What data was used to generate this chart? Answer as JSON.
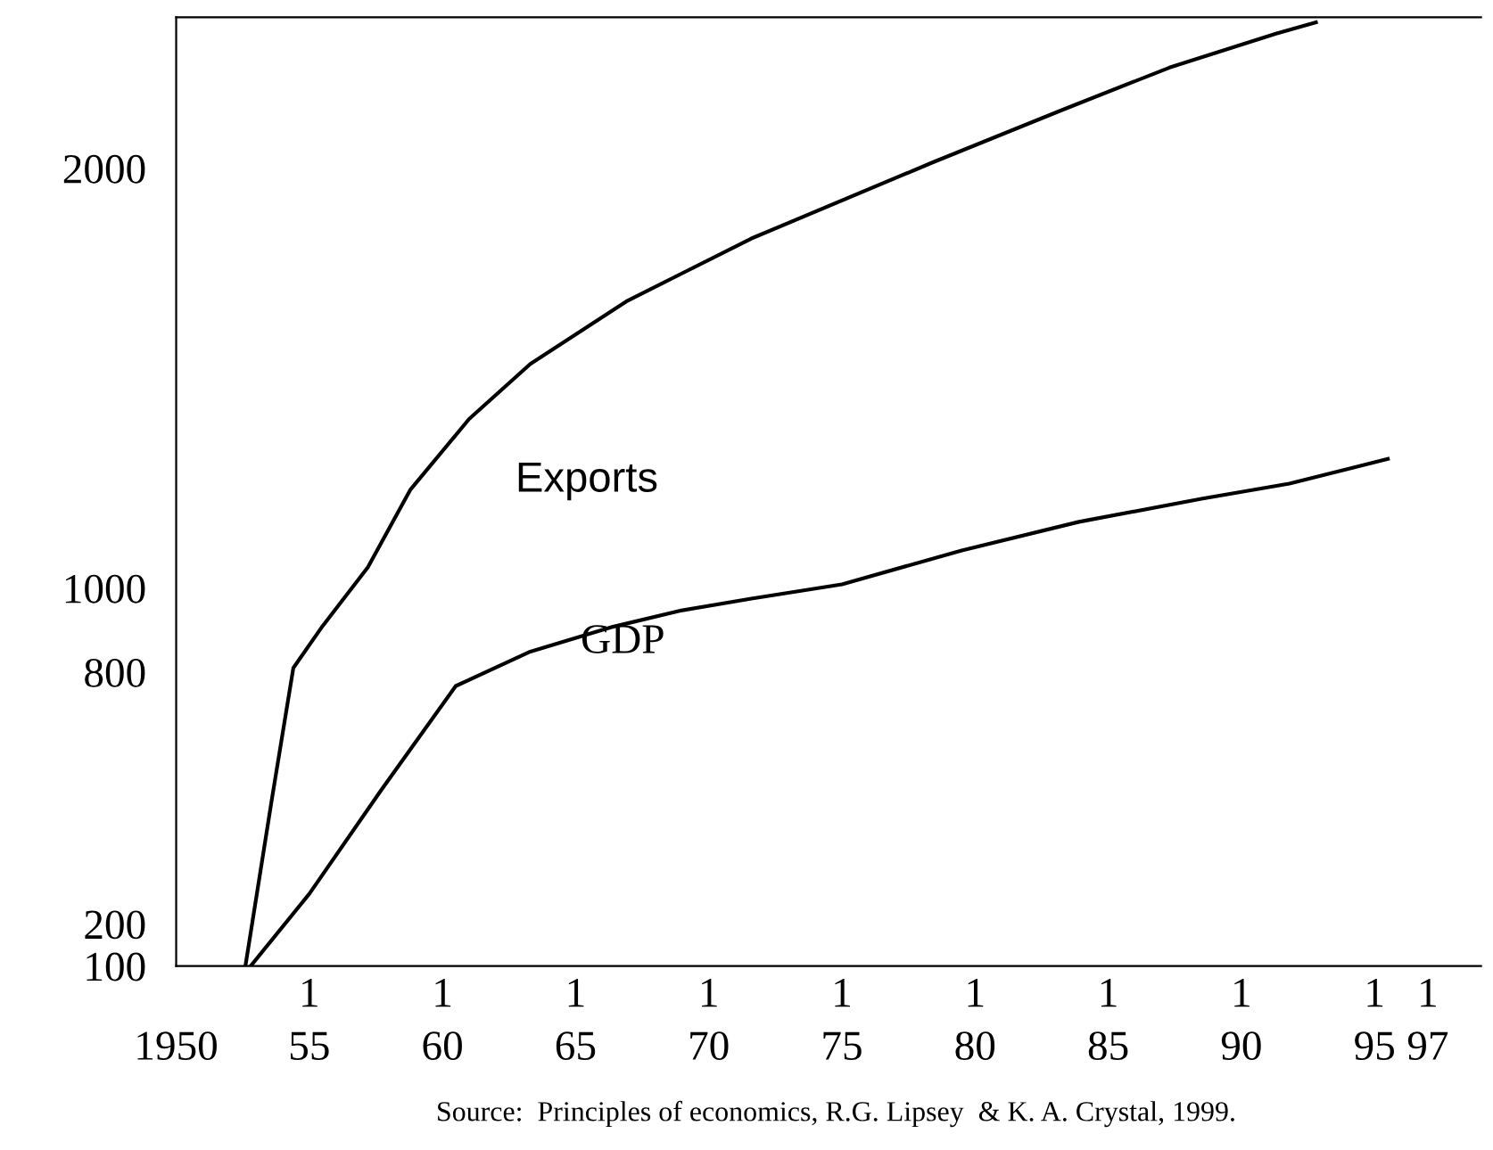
{
  "chart_data": {
    "type": "line",
    "annotations": [
      "Source:  Principles of economics, R.G. Lipsey  & K. A. Crystal, 1999.",
      "1",
      "1",
      "1",
      "1",
      "1",
      "1",
      "1",
      "1",
      "1",
      "1"
    ],
    "xlim": [
      1950,
      1999
    ],
    "xticks": [
      1950,
      {
        "value": 1955,
        "label": "55"
      },
      {
        "value": 1960,
        "label": "60"
      },
      {
        "value": 1965,
        "label": "65"
      },
      {
        "value": 1970,
        "label": "70"
      },
      {
        "value": 1975,
        "label": "75"
      },
      {
        "value": 1980,
        "label": "80"
      },
      {
        "value": 1985,
        "label": "85"
      },
      {
        "value": 1990,
        "label": "90"
      },
      {
        "value": 1995,
        "label": "95"
      },
      {
        "value": 1997,
        "label": "97"
      }
    ],
    "ylim": [
      100,
      2360
    ],
    "yticks": [
      100,
      200,
      800,
      1000,
      2000
    ],
    "series": [
      {
        "name": "Exports",
        "color": "#000000",
        "x": [
          1952.6,
          1953.6,
          1954.4,
          1955.5,
          1957.2,
          1958.8,
          1961.0,
          1963.3,
          1966.9,
          1971.6,
          1978.4,
          1983.3,
          1987.3,
          1991.3,
          1992.8
        ],
        "values": [
          100,
          500,
          810,
          910,
          1050,
          1235,
          1403,
          1534,
          1683,
          1833,
          2014,
          2140,
          2240,
          2321,
          2348
        ]
      },
      {
        "name": "GDP",
        "color": "#000000",
        "x": [
          1952.8,
          1955.0,
          1957.7,
          1960.5,
          1963.3,
          1966.4,
          1968.9,
          1971.6,
          1975.0,
          1979.5,
          1983.9,
          1988.5,
          1991.8,
          1995.5
        ],
        "values": [
          100,
          272,
          519,
          767,
          849,
          908,
          946,
          975,
          1009,
          1090,
          1158,
          1213,
          1249,
          1308
        ]
      }
    ]
  }
}
